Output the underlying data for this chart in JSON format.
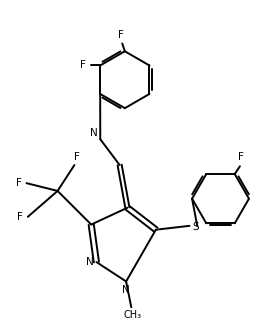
{
  "background_color": "#ffffff",
  "line_color": "#000000",
  "line_width": 1.4,
  "figsize": [
    2.6,
    3.34
  ],
  "dpi": 100,
  "xlim": [
    0,
    10
  ],
  "ylim": [
    0,
    12.85
  ]
}
